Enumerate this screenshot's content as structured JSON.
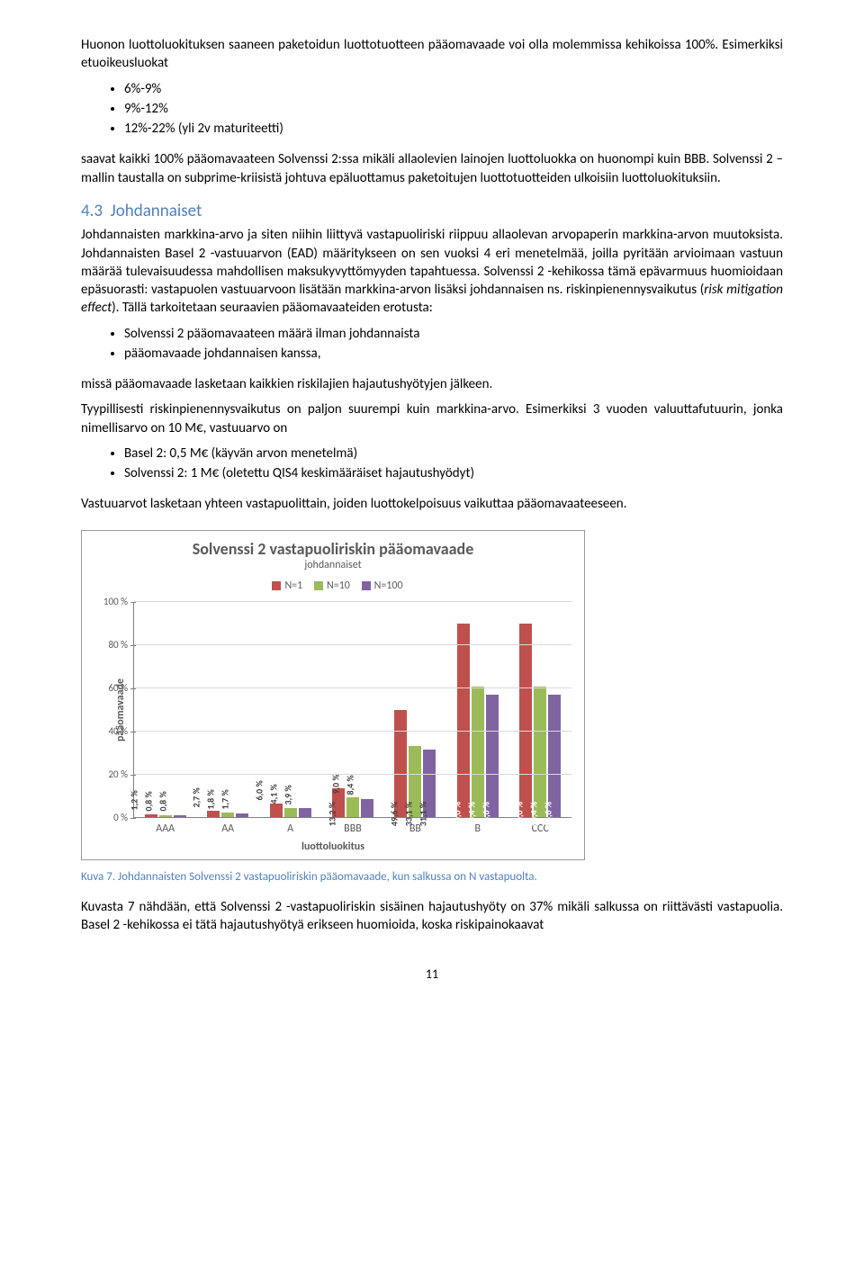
{
  "para1": "Huonon luottoluokituksen saaneen paketoidun luottotuotteen pääomavaade voi olla molemmissa kehikoissa 100%. Esimerkiksi etuoikeusluokat",
  "list1": [
    "6%-9%",
    "9%-12%",
    "12%-22% (yli 2v maturiteetti)"
  ],
  "para2": "saavat kaikki 100% pääomavaateen Solvenssi 2:ssa mikäli allaolevien lainojen luottoluokka on huonompi kuin BBB. Solvenssi 2 –mallin taustalla on subprime-kriisistä johtuva epäluottamus paketoitujen luottotuotteiden ulkoisiin luottoluokituksiin.",
  "heading": {
    "num": "4.3",
    "title": "Johdannaiset"
  },
  "para3a": "Johdannaisten markkina-arvo ja siten niihin liittyvä vastapuoliriski riippuu allaolevan arvopaperin markkina-arvon muutoksista. Johdannaisten Basel 2 -vastuuarvon (EAD) määritykseen on sen vuoksi 4 eri menetelmää, joilla pyritään arvioimaan vastuun määrää tulevaisuudessa mahdollisen maksukyvyttömyyden tapahtuessa. Solvenssi 2 -kehikossa tämä epävarmuus huomioidaan epäsuorasti: vastapuolen vastuuarvoon lisätään markkina-arvon lisäksi johdannaisen ns. riskinpienennysvaikutus (",
  "para3_italic": "risk mitigation effect",
  "para3b": "). Tällä tarkoitetaan seuraavien pääomavaateiden erotusta:",
  "list2": [
    "Solvenssi 2 pääomavaateen määrä  ilman johdannaista",
    "pääomavaade johdannaisen kanssa,"
  ],
  "para4": "missä pääomavaade lasketaan kaikkien riskilajien hajautushyötyjen jälkeen.",
  "para5": "Tyypillisesti riskinpienennysvaikutus on paljon suurempi kuin markkina-arvo. Esimerkiksi 3 vuoden valuuttafutuurin, jonka nimellisarvo on 10 M€, vastuuarvo on",
  "list3": [
    "Basel 2: 0,5 M€ (käyvän arvon menetelmä)",
    "Solvenssi 2: 1 M€ (oletettu QIS4 keskimääräiset hajautushyödyt)"
  ],
  "para6": "Vastuuarvot lasketaan yhteen vastapuolittain, joiden luottokelpoisuus vaikuttaa pääomavaateeseen.",
  "chart": {
    "title": "Solvenssi 2 vastapuoliriskin pääomavaade",
    "subtitle": "johdannaiset",
    "legend": [
      {
        "label": "N=1",
        "color": "#c0504d"
      },
      {
        "label": "N=10",
        "color": "#9bbb59"
      },
      {
        "label": "N=100",
        "color": "#8064a2"
      }
    ],
    "y_label": "pääomavaade",
    "y_ticks": [
      "0 %",
      "20 %",
      "40 %",
      "60 %",
      "80 %",
      "100 %"
    ],
    "y_max": 100,
    "x_label": "luottoluokitus",
    "categories": [
      "AAA",
      "AA",
      "A",
      "BBB",
      "BB",
      "B",
      "CCC"
    ],
    "series": [
      [
        1.2,
        0.8,
        0.8
      ],
      [
        2.7,
        1.8,
        1.7
      ],
      [
        6.0,
        4.1,
        3.9
      ],
      [
        13.2,
        9.0,
        8.4
      ],
      [
        49.6,
        33.1,
        31.1
      ],
      [
        90.0,
        60.4,
        56.6
      ],
      [
        90.0,
        60.4,
        56.6
      ]
    ],
    "grid_color": "#d9d9d9",
    "axis_color": "#808080",
    "bg": "#ffffff"
  },
  "caption": "Kuva 7. Johdannaisten Solvenssi 2 vastapuoliriskin pääomavaade, kun salkussa on N vastapuolta.",
  "para7": "Kuvasta 7  nähdään, että Solvenssi 2 -vastapuoliriskin sisäinen hajautushyöty on 37% mikäli salkussa on riittävästi vastapuolia. Basel 2 -kehikossa ei tätä hajautushyötyä erikseen huomioida, koska riskipainokaavat",
  "page_num": "11"
}
